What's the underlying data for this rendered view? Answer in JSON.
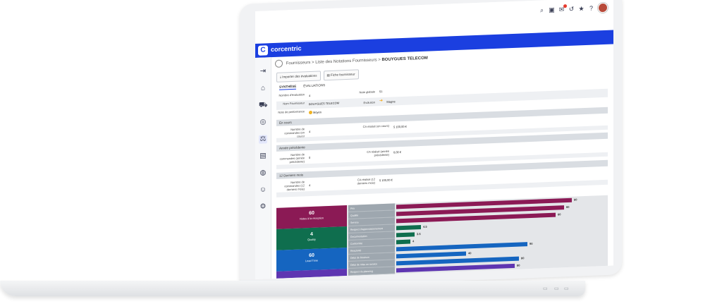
{
  "breadcrumb": {
    "items": [
      "Fournisseurs",
      "Liste des Notations Fournisseurs",
      "BOUYGUES TELECOM"
    ],
    "separator": ">"
  },
  "brand": {
    "name": "corcentric",
    "logo": "C",
    "color": "#1b3fe0"
  },
  "toolbar": {
    "import_label": "Importer des évaluations",
    "supplier_sheet_label": "Fiche fournisseur"
  },
  "tabs": [
    {
      "label": "SYNTHÈSE",
      "active": true
    },
    {
      "label": "ÉVALUATIONS",
      "active": false
    }
  ],
  "synthese": {
    "nb_eval_label": "Nombre d'évaluation",
    "nb_eval_value": "4",
    "note_globale_label": "Note globale",
    "note_globale_value": "51",
    "nom_label": "Nom Fournisseur",
    "nom_value": "BOUYGUES TELECOM",
    "evolution_label": "Evolution",
    "evolution_value": "Stagne",
    "niveau_label": "Note de performance",
    "niveau_value": "Moyen"
  },
  "sections": {
    "en_cours": "En cours",
    "annee_precedente": "Année précédente",
    "douze_mois": "12 Derniers mois"
  },
  "en_cours": {
    "commandes_label": "Nombre de commandes (en cours)",
    "commandes_value": "4",
    "ca_label": "CA réalisé (en cours)",
    "ca_value": "5 100,00 €"
  },
  "annee_precedente": {
    "commandes_label": "Nombre de commandes (année précédente)",
    "commandes_value": "0",
    "ca_label": "CA réalisé (année précédente)",
    "ca_value": "0,00 €"
  },
  "douze_mois": {
    "commandes_label": "Nombre de commandes (12 derniers mois)",
    "commandes_value": "4",
    "ca_label": "CA réalisé (12 derniers mois)",
    "ca_value": "5 100,00 €"
  },
  "performance": {
    "categories": [
      {
        "value": "60",
        "label": "Notes à la réception",
        "color": "#8b1a55"
      },
      {
        "value": "4",
        "label": "Quality",
        "color": "#0f6e4e"
      },
      {
        "value": "60",
        "label": "Lead Time",
        "color": "#1565c0"
      },
      {
        "value": "",
        "label": "",
        "color": "#5e35b1"
      }
    ],
    "criteria": [
      {
        "label": "Prix",
        "value": "60",
        "pct": 0.86,
        "color": "#8b1a55"
      },
      {
        "label": "Qualité",
        "value": "60",
        "pct": 0.82,
        "color": "#8b1a55"
      },
      {
        "label": "Service",
        "value": "60",
        "pct": 0.78,
        "color": "#8b1a55"
      },
      {
        "label": "Respect d'approvisionnement",
        "value": "4.5",
        "pct": 0.12,
        "color": "#0f6e4e"
      },
      {
        "label": "Documentation",
        "value": "3.5",
        "pct": 0.09,
        "color": "#0f6e4e"
      },
      {
        "label": "Conformité",
        "value": "4",
        "pct": 0.07,
        "color": "#0f6e4e"
      },
      {
        "label": "Réactivité",
        "value": "90",
        "pct": 0.64,
        "color": "#1565c0"
      },
      {
        "label": "Délai de livraison",
        "value": "40",
        "pct": 0.34,
        "color": "#1565c0"
      },
      {
        "label": "Délai de mise en service",
        "value": "80",
        "pct": 0.6,
        "color": "#1565c0"
      },
      {
        "label": "Respect du planning",
        "value": "80",
        "pct": 0.58,
        "color": "#5e35b1"
      }
    ]
  }
}
